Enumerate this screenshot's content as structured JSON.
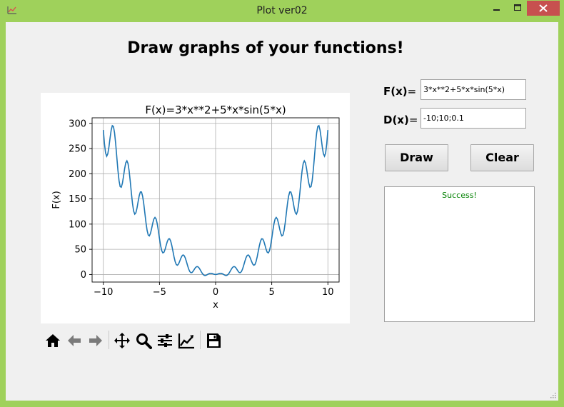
{
  "window": {
    "title": "Plot ver02"
  },
  "heading": "Draw graphs of your functions!",
  "form": {
    "fx_label": "F(x)",
    "fx_suffix": "=",
    "fx_value": "3*x**2+5*x*sin(5*x)",
    "dx_label": "D(x)",
    "dx_suffix": "=",
    "dx_value": "-10;10;0.1"
  },
  "buttons": {
    "draw": "Draw",
    "clear": "Clear"
  },
  "output": {
    "status": "Success!",
    "status_color": "#008000"
  },
  "toolbar": {
    "icons": [
      "home-icon",
      "back-arrow-icon",
      "forward-arrow-icon",
      "pan-icon",
      "zoom-icon",
      "configure-subplots-icon",
      "edit-axis-icon",
      "save-icon"
    ]
  },
  "colors": {
    "frame": "#9fd15b",
    "close_button": "#c7504f",
    "line": "#1f77b4"
  },
  "chart_data": {
    "type": "line",
    "title": "F(x)=3*x**2+5*x*sin(5*x)",
    "xlabel": "x",
    "ylabel": "F(x)",
    "function": "3*x**2+5*x*sin(5*x)",
    "x_range": [
      -10,
      10
    ],
    "x_step": 0.1,
    "xlim": [
      -11,
      11
    ],
    "ylim": [
      -15,
      311
    ],
    "xticks": [
      -10,
      -5,
      0,
      5,
      10
    ],
    "xtick_labels": [
      "−10",
      "−5",
      "0",
      "5",
      "10"
    ],
    "yticks": [
      0,
      50,
      100,
      150,
      200,
      250,
      300
    ],
    "ytick_labels": [
      "0",
      "50",
      "100",
      "150",
      "200",
      "250",
      "300"
    ],
    "grid": true
  }
}
